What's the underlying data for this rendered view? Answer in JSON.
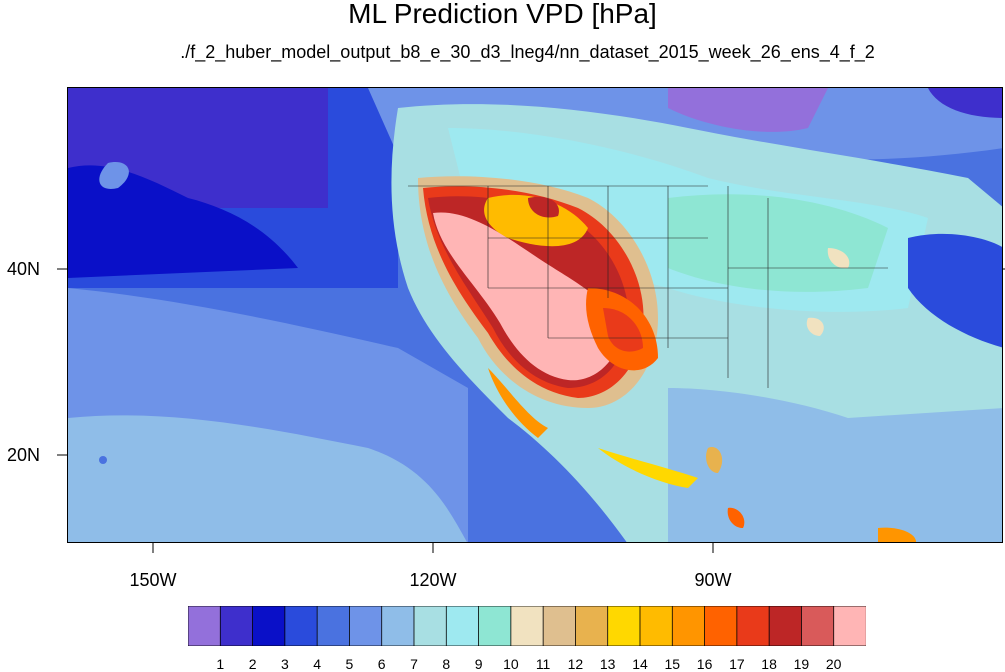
{
  "title": "ML Prediction VPD [hPa]",
  "subtitle": "./f_2_huber_model_output_b8_e_30_d3_lneg4/nn_dataset_2015_week_26_ens_4_f_2",
  "lat_labels": [
    "40N",
    "20N"
  ],
  "lon_labels": [
    "150W",
    "120W",
    "90W"
  ],
  "colorbar": {
    "levels": [
      "1",
      "2",
      "3",
      "4",
      "5",
      "6",
      "7",
      "8",
      "9",
      "10",
      "11",
      "12",
      "13",
      "14",
      "15",
      "16",
      "17",
      "18",
      "19",
      "20"
    ],
    "colors": [
      "#9370db",
      "#3e2fcc",
      "#0a10c8",
      "#2a4bdc",
      "#4a72e0",
      "#6e93e8",
      "#8fbde8",
      "#a8dfe3",
      "#9ee9f0",
      "#8ee6d3",
      "#f1e2c0",
      "#dfbf8f",
      "#e8b24e",
      "#ffd800",
      "#ffbb00",
      "#ff9500",
      "#ff6200",
      "#e93a1a",
      "#bd2626",
      "#d95a5a",
      "#ffb5b5"
    ]
  }
}
